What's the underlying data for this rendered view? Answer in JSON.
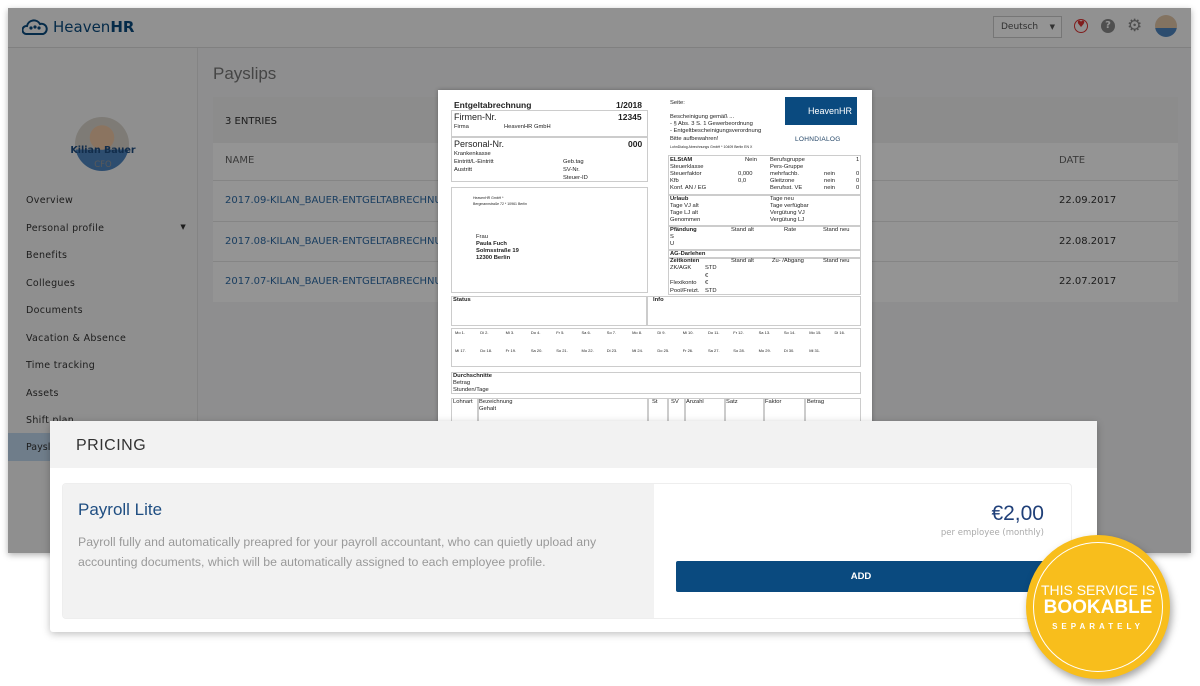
{
  "app": {
    "brand_regular": "Heaven",
    "brand_bold": "HR",
    "language": "Deutsch",
    "page_title": "Payslips"
  },
  "user": {
    "name": "Kilian Bauer",
    "role": "CFO"
  },
  "sidebar": {
    "items": [
      {
        "label": "Overview"
      },
      {
        "label": "Personal profile"
      },
      {
        "label": "Benefits"
      },
      {
        "label": "Collegues"
      },
      {
        "label": "Documents"
      },
      {
        "label": "Vacation & Absence"
      },
      {
        "label": "Time tracking"
      },
      {
        "label": "Assets"
      },
      {
        "label": "Shift plan"
      },
      {
        "label": "Payslips"
      }
    ]
  },
  "table": {
    "count_label": "3 ENTRIES",
    "col_name": "NAME",
    "col_date": "DATE",
    "rows": [
      {
        "name": "2017.09-KILAN_BAUER-ENTGELTABRECHNUNG.PDF",
        "date": "22.09.2017"
      },
      {
        "name": "2017.08-KILAN_BAUER-ENTGELTABRECHNUNG.PDF",
        "date": "22.08.2017"
      },
      {
        "name": "2017.07-KILAN_BAUER-ENTGELTABRECHNUNG.PDF",
        "date": "22.07.2017"
      }
    ]
  },
  "doc": {
    "title": "Entgeltabrechnung",
    "period": "1/2018",
    "firmen_label": "Firmen-Nr.",
    "firmen_nr": "12345",
    "firma_label": "Firma",
    "firma": "HeavenHR GmbH",
    "personal_label": "Personal-Nr.",
    "personal_nr": "000",
    "krankenkasse": "Krankenkasse",
    "eintritt": "Eintritt/L-Eintritt",
    "austritt": "Austritt",
    "gebtag": "Geb.tag",
    "svnr": "SV-Nr.",
    "steuerid": "Steuer-ID",
    "sender1": "HeavenHR GmbH *",
    "sender2": "Bergmannstraße 72 * 10961 Berlin",
    "addr": [
      "Frau",
      "Paula Fuch",
      "Solmsstraße 19",
      "12300 Berlin"
    ],
    "seite": "Seite:",
    "besch": [
      "Bescheinigung gemäß ...",
      "- §        Abs. 3 S. 1 Gewerbeordnung",
      "- Entgeltbescheinigungsverordnung"
    ],
    "bitte": "Bitte aufbewahren!",
    "lohndialog_line": "LohnDialog Abrechnungs GmbH * 10409 Berlin    EN X",
    "logo": "HeavenHR",
    "lohndialog_logo": "LOHNDIALOG",
    "elstam": [
      "ELStAM",
      "Steuerklasse",
      "Steuerfaktor",
      "Kfb",
      "Konf. AN / EG"
    ],
    "elstam_vals": [
      "Nein",
      "",
      "0,000",
      "0,0",
      ""
    ],
    "beruf": [
      "Berufsgruppe",
      "Pers-Gruppe",
      "mehrfachb.",
      "Gleitzone",
      "Berufsst. VE"
    ],
    "beruf_mid": [
      "",
      "",
      "nein",
      "nein",
      "nein"
    ],
    "beruf_vals": [
      "1",
      "",
      "0",
      "0",
      "0"
    ],
    "urlaub": [
      "Urlaub",
      "Tage VJ alt",
      "Tage LJ alt",
      "Genommen"
    ],
    "urlaub_r": [
      "Tage neu",
      "Tage verfügbar",
      "Vergütung VJ",
      "Vergütung LJ"
    ],
    "pfaendung": [
      "Pfändung",
      "Stand alt",
      "Rate",
      "Stand neu",
      "S",
      "U"
    ],
    "darlehen": "AG-Darlehen",
    "zeitkonten": [
      "Zeitkonten",
      "Stand alt",
      "Zu- /Abgang",
      "Stand neu"
    ],
    "zk_rows": [
      [
        "ZK/AGK",
        "STD"
      ],
      [
        "",
        "€"
      ],
      [
        "Flexikonto",
        "€"
      ],
      [
        "Pool/Freizt.",
        "STD"
      ]
    ],
    "status": "Status",
    "info": "Info",
    "days1": [
      "Mo 1.",
      "Di 2.",
      "Mi 3.",
      "Do 4.",
      "Fr 5.",
      "Sa 6.",
      "So 7.",
      "Mo 8.",
      "Di 9.",
      "Mi 10.",
      "Do 11.",
      "Fr 12.",
      "Sa 13.",
      "So 14.",
      "Mo 15.",
      "Di 16."
    ],
    "days2": [
      "Mi 17.",
      "Do 18.",
      "Fr 19.",
      "Sa 20.",
      "So 21.",
      "Mo 22.",
      "Di 23.",
      "Mi 24.",
      "Do 25.",
      "Fr 26.",
      "Sa 27.",
      "So 28.",
      "Mo 29.",
      "Di 30.",
      "Mi 31."
    ],
    "durch": [
      "Durchschnitte",
      "Betrag",
      "Stunden/Tage"
    ],
    "cols": [
      "Lohnart",
      "Bezeichnung",
      "St",
      "SV",
      "Anzahl",
      "Satz",
      "Faktor",
      "Betrag"
    ],
    "gehalt": "Gehalt"
  },
  "pricing": {
    "header": "PRICING",
    "title": "Payroll Lite",
    "description": "Payroll fully and automatically preapred for your payroll accountant, who can quietly upload any accounting documents, which will be automatically assigned to each employee profile.",
    "price": "€2,00",
    "per": "per employee (monthly)",
    "add_label": "ADD"
  },
  "badge": {
    "line1": "THIS SERVICE IS",
    "line2": "BOOKABLE",
    "line3": "SEPARATELY"
  },
  "colors": {
    "brand": "#0a4a7f",
    "badge": "#f8be1c"
  }
}
